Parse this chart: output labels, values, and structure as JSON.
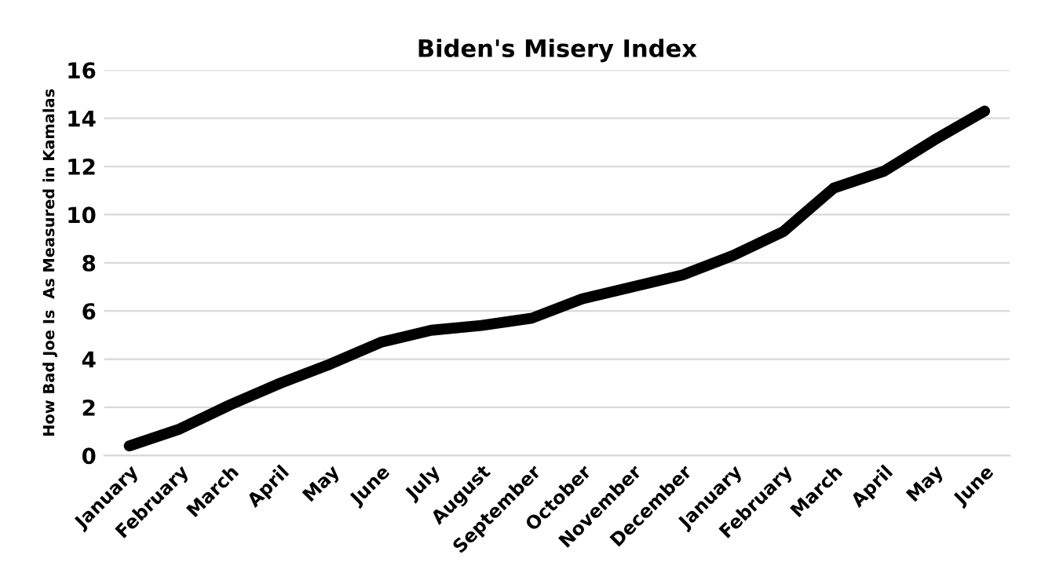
{
  "chart_data": {
    "type": "line",
    "title": "Biden's Misery Index",
    "ylabel": "How Bad Joe Is  As Measured in Kamalas",
    "categories": [
      "January",
      "February",
      "March",
      "April",
      "May",
      "June",
      "July",
      "August",
      "September",
      "October",
      "November",
      "December",
      "January",
      "February",
      "March",
      "April",
      "May",
      "June"
    ],
    "series": [
      {
        "color": "#000000",
        "values": [
          0.4,
          1.1,
          2.1,
          3.0,
          3.8,
          4.7,
          5.2,
          5.4,
          5.7,
          6.5,
          7.0,
          7.5,
          8.3,
          9.3,
          11.1,
          11.8,
          13.1,
          14.3
        ]
      }
    ],
    "ylim": [
      0,
      16
    ],
    "yticks": [
      0,
      2,
      4,
      6,
      8,
      10,
      12,
      14,
      16
    ],
    "grid": "y",
    "legend": false,
    "marker": "none",
    "line_style": "solid"
  }
}
